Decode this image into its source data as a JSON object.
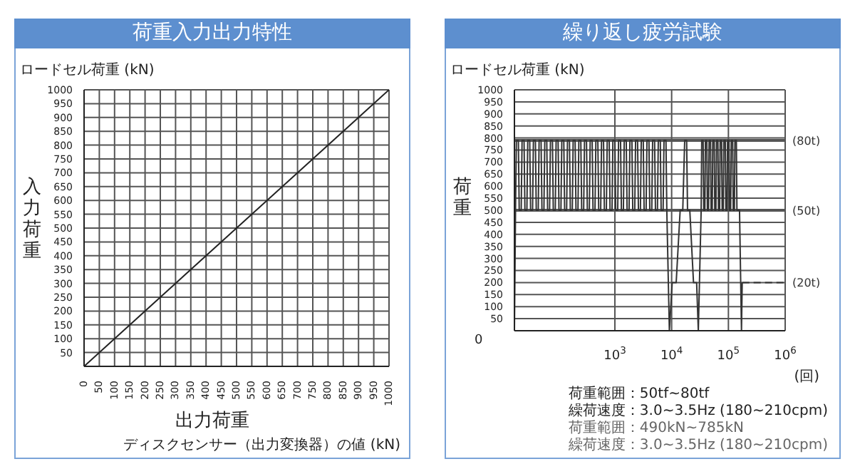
{
  "chart_data": [
    {
      "type": "line",
      "title": "荷重入力出力特性",
      "xlabel": "出力荷重",
      "ylabel": "入力荷重",
      "annotations": [
        "ロードセル荷重 (kN)",
        "ディスクセンサー（出力変換器）の値 (kN)"
      ],
      "x": [
        0,
        1000
      ],
      "series": [
        {
          "color": "#222222",
          "values": [
            0,
            1000
          ]
        }
      ],
      "xlim": [
        0,
        1000
      ],
      "xticks": [
        0,
        50,
        100,
        150,
        200,
        250,
        300,
        350,
        400,
        450,
        500,
        550,
        600,
        650,
        700,
        750,
        800,
        850,
        900,
        950,
        1000
      ],
      "ylim": [
        0,
        1000
      ],
      "yticks": [
        50,
        100,
        150,
        200,
        250,
        300,
        350,
        400,
        450,
        500,
        550,
        600,
        650,
        700,
        750,
        800,
        850,
        900,
        950,
        1000
      ],
      "grid": true,
      "marker": "none"
    },
    {
      "type": "line",
      "title": "繰り返し疲労試験",
      "xlabel": "(回)",
      "ylabel": "荷重",
      "annotations": [
        "ロードセル荷重 (kN)",
        "0",
        "荷重範囲：50tf~80tf",
        "繰荷速度：3.0~3.5Hz (180~210cpm)",
        "荷重範囲：490kN~785kN",
        "繰荷速度：3.0~3.5Hz (180~210cpm)",
        {
          "text": "(20t)",
          "x": 1000000,
          "y": 200
        }
      ],
      "x": [
        17,
        17.78,
        18.41,
        19.95,
        20.65,
        22.39,
        23.17,
        25.12,
        26.0,
        28.18,
        29.17,
        31.62,
        32.73,
        35.48,
        36.73,
        39.81,
        41.21,
        44.67,
        46.24,
        50.12,
        51.88,
        56.23,
        58.21,
        63.1,
        65.31,
        70.79,
        73.28,
        79.43,
        82.22,
        89.13,
        92.26,
        100,
        103.5,
        112.2,
        116.1,
        125.9,
        130.3,
        141.3,
        146.2,
        158.5,
        164.1,
        177.8,
        184.1,
        199.5,
        206.5,
        223.9,
        231.7,
        251.2,
        260,
        281.8,
        291.7,
        316.2,
        327.3,
        354.8,
        367.3,
        398.1,
        412.1,
        446.7,
        462.4,
        501.2,
        518.8,
        562.3,
        582.1,
        631,
        653.1,
        707.9,
        732.8,
        794.3,
        822.2,
        891.3,
        922.6,
        1000,
        1035,
        1122,
        1161,
        1259,
        1303,
        1413,
        1462,
        1585,
        1641,
        1778,
        1841,
        1995,
        2065,
        2239,
        2317,
        2512,
        2600,
        2818,
        2917,
        3162,
        3273,
        3548,
        3673,
        3981,
        4121,
        4467,
        4624,
        5012,
        5188,
        5623,
        5821,
        6310,
        6531,
        7079,
        7328,
        7943,
        8222,
        9120,
        10230,
        12020,
        14130,
        15700,
        16980,
        18370,
        19050,
        20890,
        24270,
        27540,
        29510,
        33110,
        33880,
        35890,
        36730,
        38460,
        39360,
        41690,
        42660,
        44670,
        45710,
        48420,
        49550,
        51880,
        53090,
        56230,
        57540,
        60260,
        61660,
        65310,
        66830,
        69980,
        71610,
        75860,
        77620,
        81280,
        83180,
        88100,
        90160,
        94410,
        96610,
        102300,
        104700,
        109600,
        112200,
        118900,
        121600,
        127400,
        130300,
        138000,
        141300,
        157000,
        170000,
        175000
      ],
      "series": [
        {
          "color": "#333333",
          "values": [
            0,
            500,
            790,
            790,
            500,
            500,
            790,
            790,
            500,
            500,
            790,
            790,
            500,
            500,
            790,
            790,
            500,
            500,
            790,
            790,
            500,
            500,
            790,
            790,
            500,
            500,
            790,
            790,
            500,
            500,
            790,
            790,
            500,
            500,
            790,
            790,
            500,
            500,
            790,
            790,
            500,
            500,
            790,
            790,
            500,
            500,
            790,
            790,
            500,
            500,
            790,
            790,
            500,
            500,
            790,
            790,
            500,
            500,
            790,
            790,
            500,
            500,
            790,
            790,
            500,
            500,
            790,
            790,
            500,
            500,
            790,
            790,
            500,
            500,
            790,
            790,
            500,
            500,
            790,
            790,
            500,
            500,
            790,
            790,
            500,
            500,
            790,
            790,
            500,
            500,
            790,
            790,
            500,
            500,
            790,
            790,
            500,
            500,
            790,
            790,
            500,
            500,
            790,
            790,
            500,
            500,
            790,
            790,
            500,
            0,
            200,
            200,
            500,
            500,
            790,
            790,
            500,
            500,
            200,
            200,
            0,
            500,
            790,
            790,
            500,
            500,
            790,
            790,
            500,
            500,
            790,
            790,
            500,
            500,
            790,
            790,
            500,
            500,
            790,
            790,
            500,
            500,
            790,
            790,
            500,
            500,
            790,
            790,
            500,
            500,
            790,
            790,
            500,
            500,
            790,
            790,
            500,
            500,
            790,
            790,
            500,
            500,
            0,
            200
          ]
        },
        {
          "color": "#333333",
          "line_style": "dashed",
          "x": [
            175000,
            1000000
          ],
          "values": [
            200,
            200
          ]
        }
      ],
      "xlim": [
        17,
        1000000
      ],
      "log": "x",
      "xticks": [
        {
          "value": 1000,
          "label": "10$^{3}$"
        },
        {
          "value": 10000,
          "label": "10$^{4}$"
        },
        {
          "value": 100000,
          "label": "10$^{5}$"
        },
        {
          "value": 1000000,
          "label": "10$^{6}$"
        }
      ],
      "ylim": [
        0,
        1000
      ],
      "yticks": [
        50,
        100,
        150,
        200,
        250,
        300,
        350,
        400,
        450,
        500,
        550,
        600,
        650,
        700,
        750,
        800,
        850,
        900,
        950,
        1000
      ],
      "ref_lines": [
        {
          "axis": "y",
          "value": 790,
          "label": "(80t)",
          "color": "#555555"
        },
        {
          "axis": "y",
          "value": 500,
          "label": "(50t)",
          "color": "#555555"
        }
      ],
      "grid": true,
      "marker": "none"
    }
  ]
}
